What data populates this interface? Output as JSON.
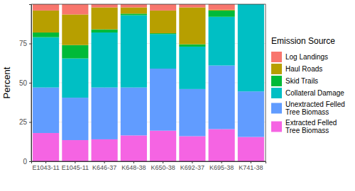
{
  "chart_data": {
    "type": "bar",
    "stacked": true,
    "grid": true,
    "legend": "right",
    "y_label": "Percent",
    "legend_title": "Emission Source",
    "categories": [
      "E1043-11",
      "E1045-11",
      "K646-37",
      "K648-38",
      "K650-38",
      "K692-37",
      "K695-38",
      "K741-38"
    ],
    "ylim": [
      0,
      100
    ],
    "yticks": [
      0,
      25,
      50,
      75
    ],
    "series": [
      {
        "name": "Log Landings",
        "color": "#F8766D",
        "values": [
          4,
          6.5,
          2,
          2,
          4,
          2,
          3.5,
          0
        ]
      },
      {
        "name": "Haul Roads",
        "color": "#B79F00",
        "values": [
          14,
          19.5,
          14,
          4,
          14.5,
          23.5,
          0.5,
          0
        ]
      },
      {
        "name": "Skid Trails",
        "color": "#00BA38",
        "values": [
          3,
          8.5,
          2,
          1,
          0.5,
          1.5,
          4,
          0
        ]
      },
      {
        "name": "Collateral Damage",
        "color": "#00BFC4",
        "values": [
          32,
          25,
          35,
          46,
          22,
          27,
          31,
          55.5
        ]
      },
      {
        "name": "Unextracted Felled\nTree Biomass",
        "color": "#619CFF",
        "values": [
          29,
          27,
          33,
          30.5,
          39.5,
          30,
          40.5,
          29
        ]
      },
      {
        "name": "Extracted Felled\nTree Biomass",
        "color": "#F564E3",
        "values": [
          18,
          13.5,
          14,
          16.5,
          19.5,
          16,
          20.5,
          15.5
        ]
      }
    ]
  }
}
